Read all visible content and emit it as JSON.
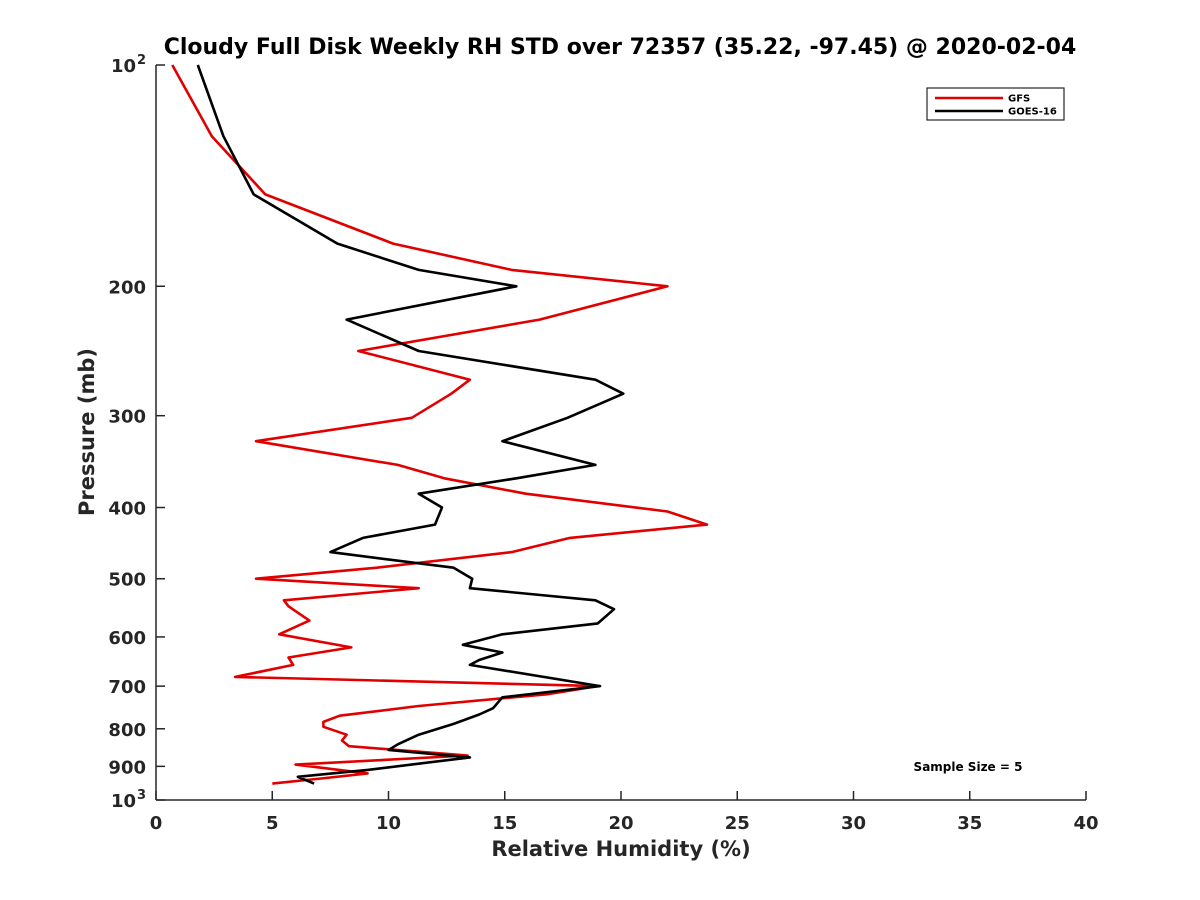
{
  "chart_data": {
    "type": "line",
    "title": "Cloudy Full Disk Weekly RH STD over 72357 (35.22, -97.45) @ 2020-02-04",
    "xlabel": "Relative Humidity (%)",
    "ylabel": "Pressure (mb)",
    "xlim": [
      0,
      40
    ],
    "ylim": [
      100,
      1000
    ],
    "y_scale": "log",
    "y_reversed": true,
    "grid": false,
    "legend_position": "top-right",
    "x_ticks": [
      "0",
      "5",
      "10",
      "15",
      "20",
      "25",
      "30",
      "35",
      "40"
    ],
    "y_ticks": [
      {
        "value": 100,
        "base": "10",
        "exp": "2"
      },
      {
        "value": 200,
        "base": "200",
        "exp": ""
      },
      {
        "value": 300,
        "base": "300",
        "exp": ""
      },
      {
        "value": 400,
        "base": "400",
        "exp": ""
      },
      {
        "value": 500,
        "base": "500",
        "exp": ""
      },
      {
        "value": 600,
        "base": "600",
        "exp": ""
      },
      {
        "value": 700,
        "base": "700",
        "exp": ""
      },
      {
        "value": 800,
        "base": "800",
        "exp": ""
      },
      {
        "value": 900,
        "base": "900",
        "exp": ""
      },
      {
        "value": 1000,
        "base": "10",
        "exp": "3"
      }
    ],
    "annotation": "Sample Size = 5",
    "series": [
      {
        "name": "GFS",
        "color": "#e00000",
        "points": [
          [
            0.7,
            100
          ],
          [
            2.4,
            125
          ],
          [
            4.7,
            150
          ],
          [
            10.2,
            175
          ],
          [
            15.3,
            190
          ],
          [
            22.0,
            200
          ],
          [
            16.5,
            222
          ],
          [
            8.7,
            245
          ],
          [
            13.5,
            268
          ],
          [
            12.7,
            280
          ],
          [
            11.0,
            302
          ],
          [
            4.3,
            325
          ],
          [
            10.4,
            350
          ],
          [
            12.4,
            365
          ],
          [
            15.9,
            383
          ],
          [
            22.0,
            405
          ],
          [
            23.7,
            422
          ],
          [
            17.8,
            440
          ],
          [
            15.3,
            460
          ],
          [
            9.5,
            483
          ],
          [
            4.3,
            500
          ],
          [
            11.3,
            515
          ],
          [
            5.5,
            535
          ],
          [
            5.7,
            545
          ],
          [
            6.6,
            570
          ],
          [
            5.3,
            595
          ],
          [
            8.4,
            620
          ],
          [
            5.7,
            640
          ],
          [
            5.9,
            655
          ],
          [
            3.4,
            680
          ],
          [
            19.0,
            700
          ],
          [
            16.8,
            718
          ],
          [
            11.3,
            745
          ],
          [
            7.9,
            768
          ],
          [
            7.2,
            783
          ],
          [
            7.2,
            795
          ],
          [
            8.2,
            815
          ],
          [
            8.0,
            830
          ],
          [
            8.3,
            845
          ],
          [
            13.4,
            870
          ],
          [
            6.0,
            895
          ],
          [
            9.1,
            920
          ],
          [
            7.1,
            935
          ],
          [
            5.0,
            950
          ]
        ]
      },
      {
        "name": "GOES-16",
        "color": "#000000",
        "points": [
          [
            1.8,
            100
          ],
          [
            2.9,
            125
          ],
          [
            4.2,
            150
          ],
          [
            7.8,
            175
          ],
          [
            11.3,
            190
          ],
          [
            15.5,
            200
          ],
          [
            8.2,
            222
          ],
          [
            11.3,
            245
          ],
          [
            18.9,
            268
          ],
          [
            20.1,
            280
          ],
          [
            17.7,
            302
          ],
          [
            14.9,
            325
          ],
          [
            18.9,
            350
          ],
          [
            15.5,
            365
          ],
          [
            11.3,
            383
          ],
          [
            12.3,
            400
          ],
          [
            12.0,
            422
          ],
          [
            8.9,
            440
          ],
          [
            7.5,
            460
          ],
          [
            12.8,
            483
          ],
          [
            13.6,
            500
          ],
          [
            13.5,
            515
          ],
          [
            18.9,
            535
          ],
          [
            19.7,
            550
          ],
          [
            19.0,
            575
          ],
          [
            14.9,
            595
          ],
          [
            13.2,
            615
          ],
          [
            14.9,
            630
          ],
          [
            13.9,
            645
          ],
          [
            13.5,
            655
          ],
          [
            19.1,
            700
          ],
          [
            14.9,
            725
          ],
          [
            14.5,
            750
          ],
          [
            13.9,
            765
          ],
          [
            12.8,
            788
          ],
          [
            11.3,
            815
          ],
          [
            10.4,
            840
          ],
          [
            10.0,
            855
          ],
          [
            13.5,
            875
          ],
          [
            9.1,
            910
          ],
          [
            6.1,
            930
          ],
          [
            6.8,
            950
          ]
        ]
      }
    ]
  }
}
